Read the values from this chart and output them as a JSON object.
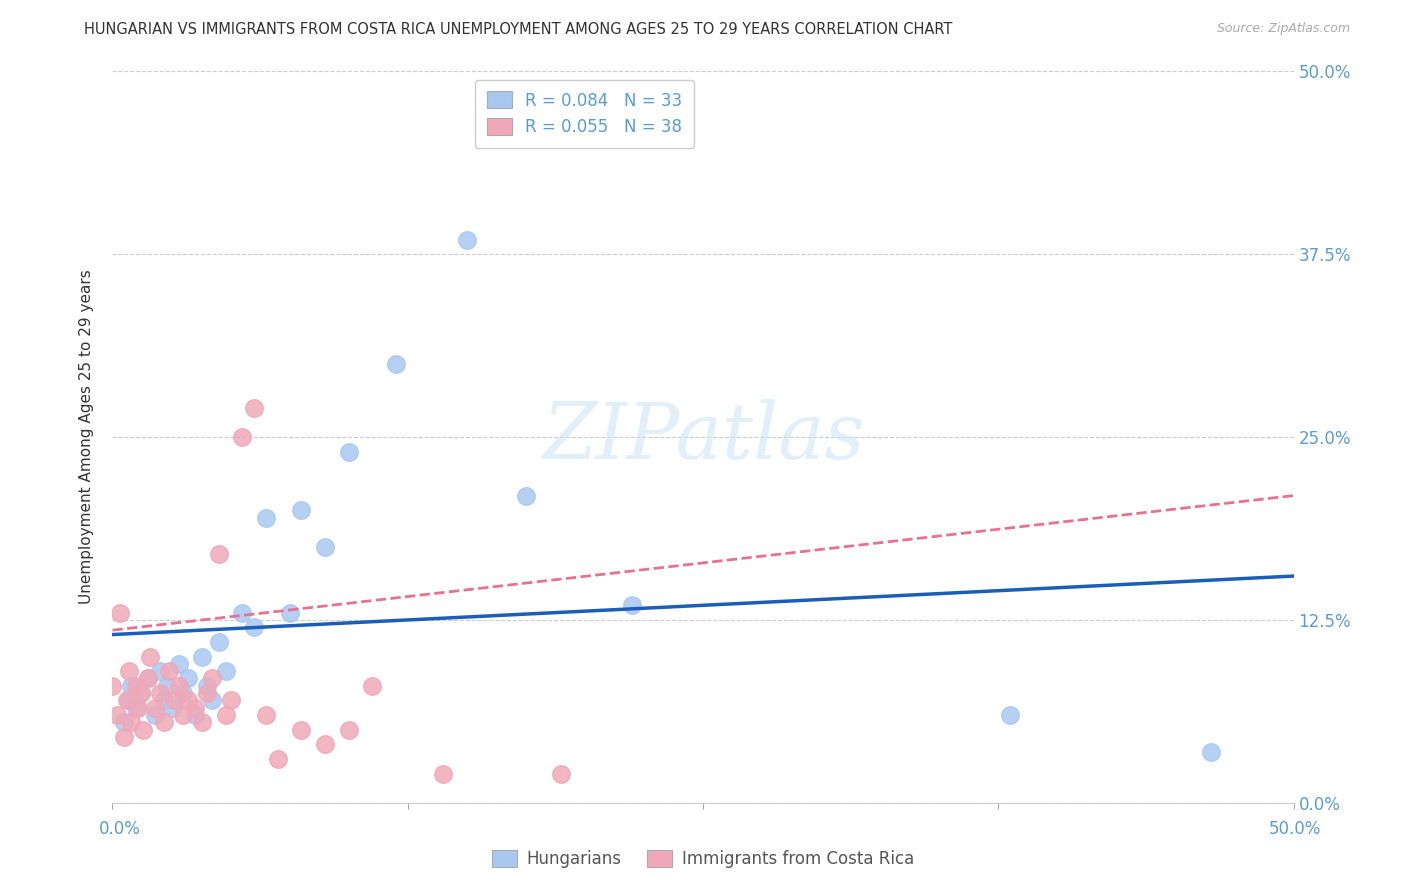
{
  "title": "HUNGARIAN VS IMMIGRANTS FROM COSTA RICA UNEMPLOYMENT AMONG AGES 25 TO 29 YEARS CORRELATION CHART",
  "source": "Source: ZipAtlas.com",
  "ylabel": "Unemployment Among Ages 25 to 29 years",
  "xlim": [
    0.0,
    0.5
  ],
  "ylim": [
    0.0,
    0.5
  ],
  "ytick_labels": [
    "0.0%",
    "12.5%",
    "25.0%",
    "37.5%",
    "50.0%"
  ],
  "ytick_values": [
    0.0,
    0.125,
    0.25,
    0.375,
    0.5
  ],
  "blue_R": 0.084,
  "blue_N": 33,
  "pink_R": 0.055,
  "pink_N": 38,
  "blue_color": "#a8c8f0",
  "pink_color": "#f0a8b8",
  "blue_line_color": "#1a5eb8",
  "pink_line_color": "#e87090",
  "background_color": "#ffffff",
  "blue_points_x": [
    0.005,
    0.007,
    0.008,
    0.01,
    0.012,
    0.015,
    0.018,
    0.02,
    0.022,
    0.023,
    0.025,
    0.028,
    0.03,
    0.032,
    0.035,
    0.038,
    0.04,
    0.042,
    0.045,
    0.048,
    0.055,
    0.06,
    0.065,
    0.075,
    0.08,
    0.09,
    0.1,
    0.12,
    0.15,
    0.175,
    0.22,
    0.38,
    0.465
  ],
  "blue_points_y": [
    0.055,
    0.07,
    0.08,
    0.065,
    0.075,
    0.085,
    0.06,
    0.09,
    0.07,
    0.08,
    0.065,
    0.095,
    0.075,
    0.085,
    0.06,
    0.1,
    0.08,
    0.07,
    0.11,
    0.09,
    0.13,
    0.12,
    0.195,
    0.13,
    0.2,
    0.175,
    0.24,
    0.3,
    0.385,
    0.21,
    0.135,
    0.06,
    0.035
  ],
  "pink_points_x": [
    0.0,
    0.002,
    0.003,
    0.005,
    0.006,
    0.007,
    0.008,
    0.01,
    0.011,
    0.012,
    0.013,
    0.015,
    0.016,
    0.018,
    0.02,
    0.022,
    0.024,
    0.026,
    0.028,
    0.03,
    0.032,
    0.035,
    0.038,
    0.04,
    0.042,
    0.045,
    0.048,
    0.05,
    0.055,
    0.06,
    0.065,
    0.07,
    0.08,
    0.09,
    0.1,
    0.11,
    0.14,
    0.19
  ],
  "pink_points_y": [
    0.08,
    0.06,
    0.13,
    0.045,
    0.07,
    0.09,
    0.055,
    0.08,
    0.065,
    0.075,
    0.05,
    0.085,
    0.1,
    0.065,
    0.075,
    0.055,
    0.09,
    0.07,
    0.08,
    0.06,
    0.07,
    0.065,
    0.055,
    0.075,
    0.085,
    0.17,
    0.06,
    0.07,
    0.25,
    0.27,
    0.06,
    0.03,
    0.05,
    0.04,
    0.05,
    0.08,
    0.02,
    0.02
  ],
  "blue_line_x": [
    0.0,
    0.5
  ],
  "blue_line_y": [
    0.115,
    0.155
  ],
  "pink_line_x": [
    0.0,
    0.5
  ],
  "pink_line_y": [
    0.118,
    0.21
  ]
}
